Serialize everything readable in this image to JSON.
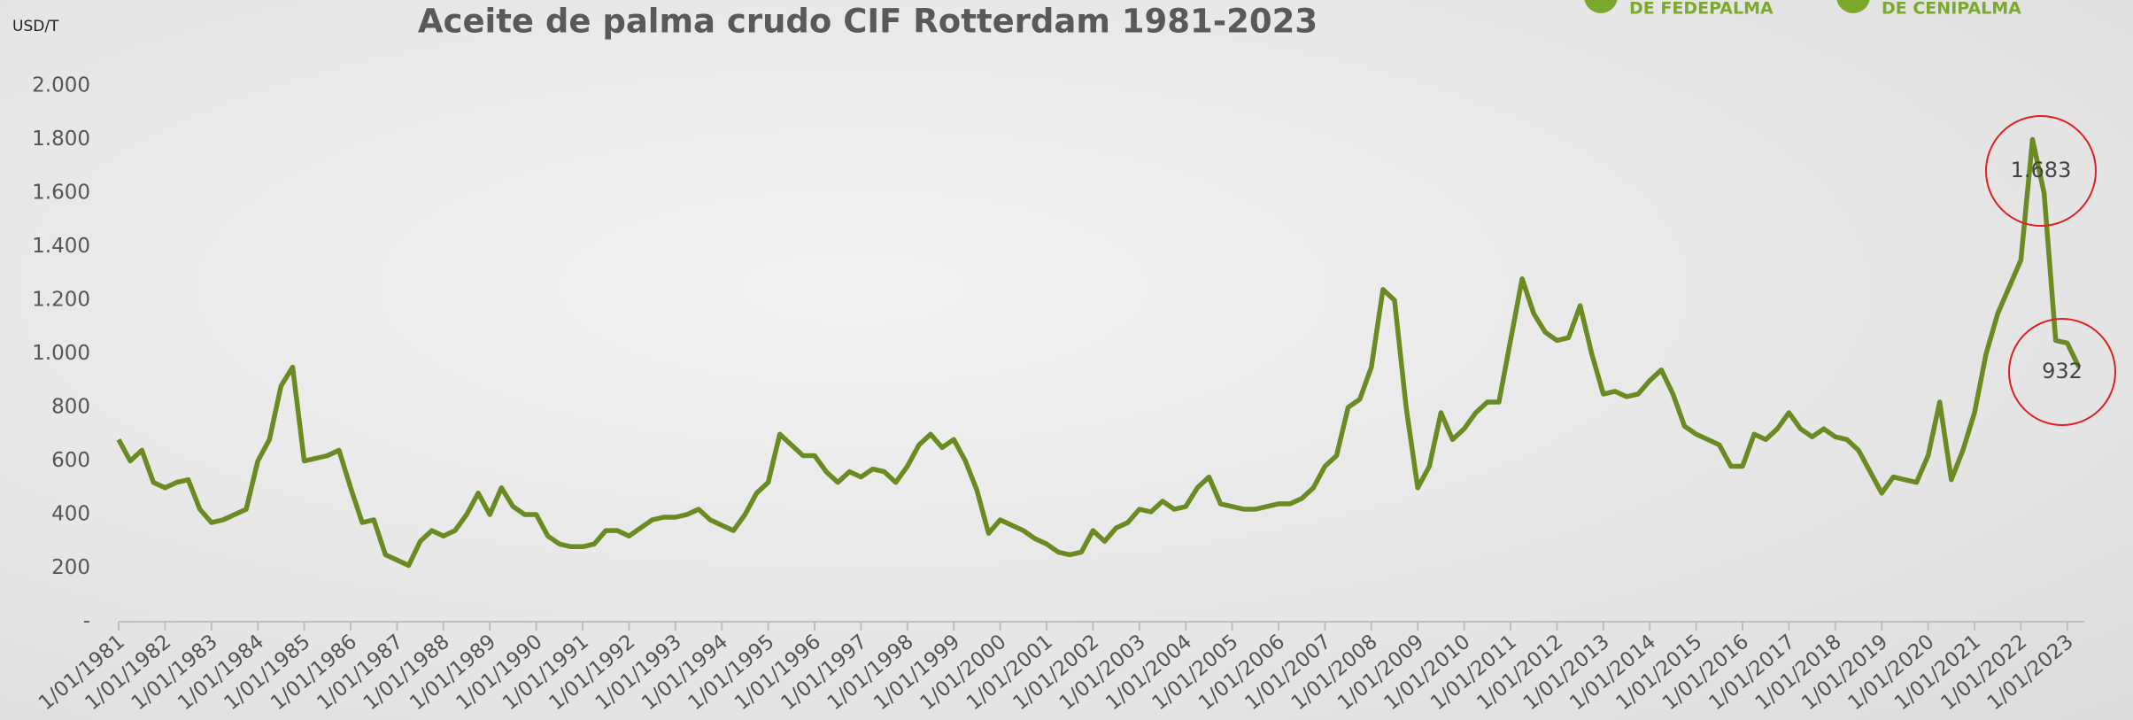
{
  "chart_data": {
    "type": "line",
    "title": "Aceite de palma crudo CIF Rotterdam 1981-2023",
    "y_label": "USD/T",
    "logos": [
      "DE FEDEPALMA",
      "DE CENIPALMA"
    ],
    "categories": [
      "1/01/1981",
      null,
      null,
      null,
      "1/01/1982",
      null,
      null,
      null,
      "1/01/1983",
      null,
      null,
      null,
      "1/01/1984",
      null,
      null,
      null,
      "1/01/1985",
      null,
      null,
      null,
      "1/01/1986",
      null,
      null,
      null,
      "1/01/1987",
      null,
      null,
      null,
      "1/01/1988",
      null,
      null,
      null,
      "1/01/1989",
      null,
      null,
      null,
      "1/01/1990",
      null,
      null,
      null,
      "1/01/1991",
      null,
      null,
      null,
      "1/01/1992",
      null,
      null,
      null,
      "1/01/1993",
      null,
      null,
      null,
      "1/01/1994",
      null,
      null,
      null,
      "1/01/1995",
      null,
      null,
      null,
      "1/01/1996",
      null,
      null,
      null,
      "1/01/1997",
      null,
      null,
      null,
      "1/01/1998",
      null,
      null,
      null,
      "1/01/1999",
      null,
      null,
      null,
      "1/01/2000",
      null,
      null,
      null,
      "1/01/2001",
      null,
      null,
      null,
      "1/01/2002",
      null,
      null,
      null,
      "1/01/2003",
      null,
      null,
      null,
      "1/01/2004",
      null,
      null,
      null,
      "1/01/2005",
      null,
      null,
      null,
      "1/01/2006",
      null,
      null,
      null,
      "1/01/2007",
      null,
      null,
      null,
      "1/01/2008",
      null,
      null,
      null,
      "1/01/2009",
      null,
      null,
      null,
      "1/01/2010",
      null,
      null,
      null,
      "1/01/2011",
      null,
      null,
      null,
      "1/01/2012",
      null,
      null,
      null,
      "1/01/2013",
      null,
      null,
      null,
      "1/01/2014",
      null,
      null,
      null,
      "1/01/2015",
      null,
      null,
      null,
      "1/01/2016",
      null,
      null,
      null,
      "1/01/2017",
      null,
      null,
      null,
      "1/01/2018",
      null,
      null,
      null,
      "1/01/2019",
      null,
      null,
      null,
      "1/01/2020",
      null,
      null,
      null,
      "1/01/2021",
      null,
      null,
      null,
      "1/01/2022",
      null,
      null,
      null,
      "1/01/2023",
      null
    ],
    "values": [
      680,
      600,
      640,
      520,
      500,
      520,
      530,
      420,
      370,
      380,
      400,
      420,
      600,
      680,
      880,
      950,
      600,
      610,
      620,
      640,
      500,
      370,
      380,
      250,
      230,
      210,
      300,
      340,
      320,
      340,
      400,
      480,
      400,
      500,
      430,
      400,
      400,
      320,
      290,
      280,
      280,
      290,
      340,
      340,
      320,
      350,
      380,
      390,
      390,
      400,
      420,
      380,
      360,
      340,
      400,
      480,
      520,
      700,
      660,
      620,
      620,
      560,
      520,
      560,
      540,
      570,
      560,
      520,
      580,
      660,
      700,
      650,
      680,
      600,
      490,
      330,
      380,
      360,
      340,
      310,
      290,
      260,
      250,
      260,
      340,
      300,
      350,
      370,
      420,
      410,
      450,
      420,
      430,
      500,
      540,
      440,
      430,
      420,
      420,
      430,
      440,
      440,
      460,
      500,
      580,
      620,
      800,
      830,
      950,
      1240,
      1200,
      800,
      500,
      580,
      780,
      680,
      720,
      780,
      820,
      820,
      1050,
      1280,
      1150,
      1080,
      1050,
      1060,
      1180,
      1000,
      850,
      860,
      840,
      850,
      900,
      940,
      850,
      730,
      700,
      680,
      660,
      580,
      580,
      700,
      680,
      720,
      780,
      720,
      690,
      720,
      690,
      680,
      640,
      560,
      480,
      540,
      530,
      520,
      620,
      820,
      530,
      640,
      780,
      1000,
      1150,
      1250,
      1350,
      1800,
      1600,
      1050,
      1040,
      950
    ],
    "color": "#6a8a22",
    "ylim": [
      0,
      2000
    ],
    "yticks": [
      {
        "value": 0,
        "label": "-"
      },
      200,
      400,
      600,
      800,
      {
        "value": 1000,
        "label": "1.000"
      },
      {
        "value": 1200,
        "label": "1.200"
      },
      {
        "value": 1400,
        "label": "1.400"
      },
      {
        "value": 1600,
        "label": "1.600"
      },
      {
        "value": 1800,
        "label": "1.800"
      },
      {
        "value": 2000,
        "label": "2.000"
      }
    ],
    "annotations": [
      "1.683",
      "932"
    ]
  }
}
